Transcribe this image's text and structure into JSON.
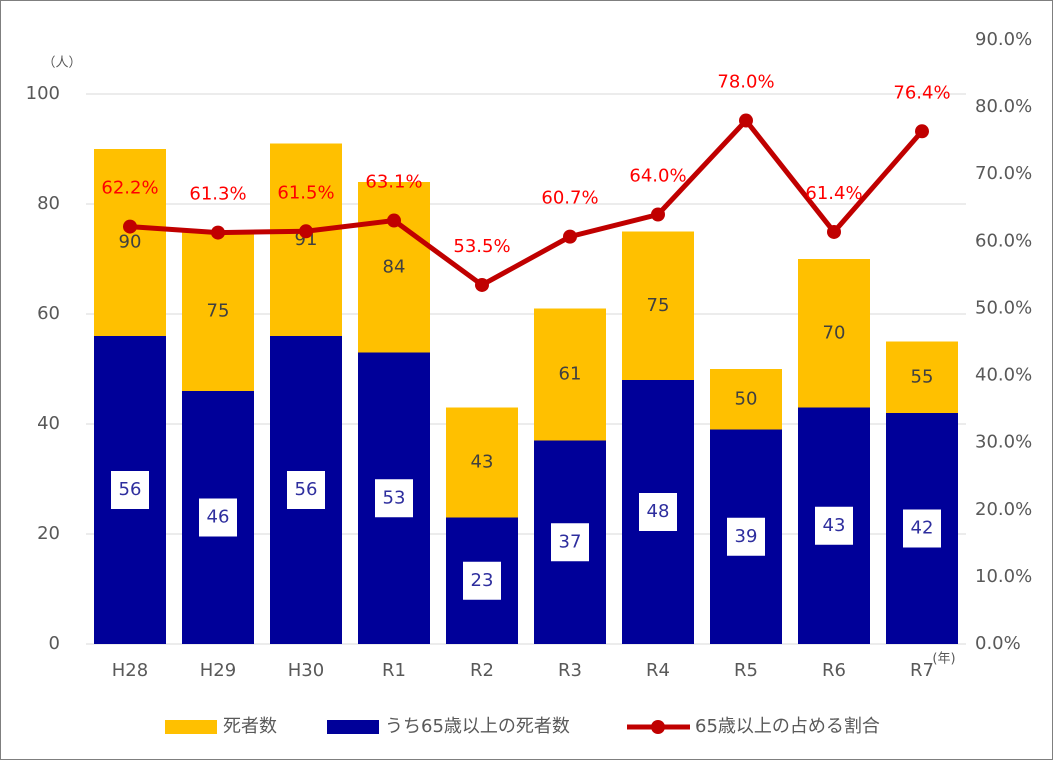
{
  "chart_data": {
    "type": "bar",
    "y_unit": "（人）",
    "x_unit": "(年)",
    "categories": [
      "H28",
      "H29",
      "H30",
      "R1",
      "R2",
      "R3",
      "R4",
      "R5",
      "R6",
      "R7"
    ],
    "series": [
      {
        "name": "死者数",
        "color": "#ffc000",
        "values": [
          90,
          75,
          91,
          84,
          43,
          61,
          75,
          50,
          70,
          55
        ]
      },
      {
        "name": "うち65歳以上の死者数",
        "color": "#000099",
        "values": [
          56,
          46,
          56,
          53,
          23,
          37,
          48,
          39,
          43,
          42
        ]
      },
      {
        "name": "65歳以上の占める割合",
        "type": "line",
        "axis": "y2",
        "color": "#c00000",
        "values": [
          62.2,
          61.3,
          61.5,
          63.1,
          53.5,
          60.7,
          64.0,
          78.0,
          61.4,
          76.4
        ],
        "value_labels": [
          "62.2%",
          "61.3%",
          "61.5%",
          "63.1%",
          "53.5%",
          "60.7%",
          "64.0%",
          "78.0%",
          "61.4%",
          "76.4%"
        ]
      }
    ],
    "ylim": [
      0,
      100
    ],
    "yticks": [
      0,
      20,
      40,
      60,
      80,
      100
    ],
    "y2lim": [
      0,
      90
    ],
    "y2ticks": [
      {
        "value": 0,
        "label": "0.0%"
      },
      {
        "value": 10,
        "label": "10.0%"
      },
      {
        "value": 20,
        "label": "20.0%"
      },
      {
        "value": 30,
        "label": "30.0%"
      },
      {
        "value": 40,
        "label": "40.0%"
      },
      {
        "value": 50,
        "label": "50.0%"
      },
      {
        "value": 60,
        "label": "60.0%"
      },
      {
        "value": 70,
        "label": "70.0%"
      },
      {
        "value": 80,
        "label": "80.0%"
      },
      {
        "value": 90,
        "label": "90.0%"
      }
    ],
    "grid": true,
    "legend": "bottom"
  }
}
